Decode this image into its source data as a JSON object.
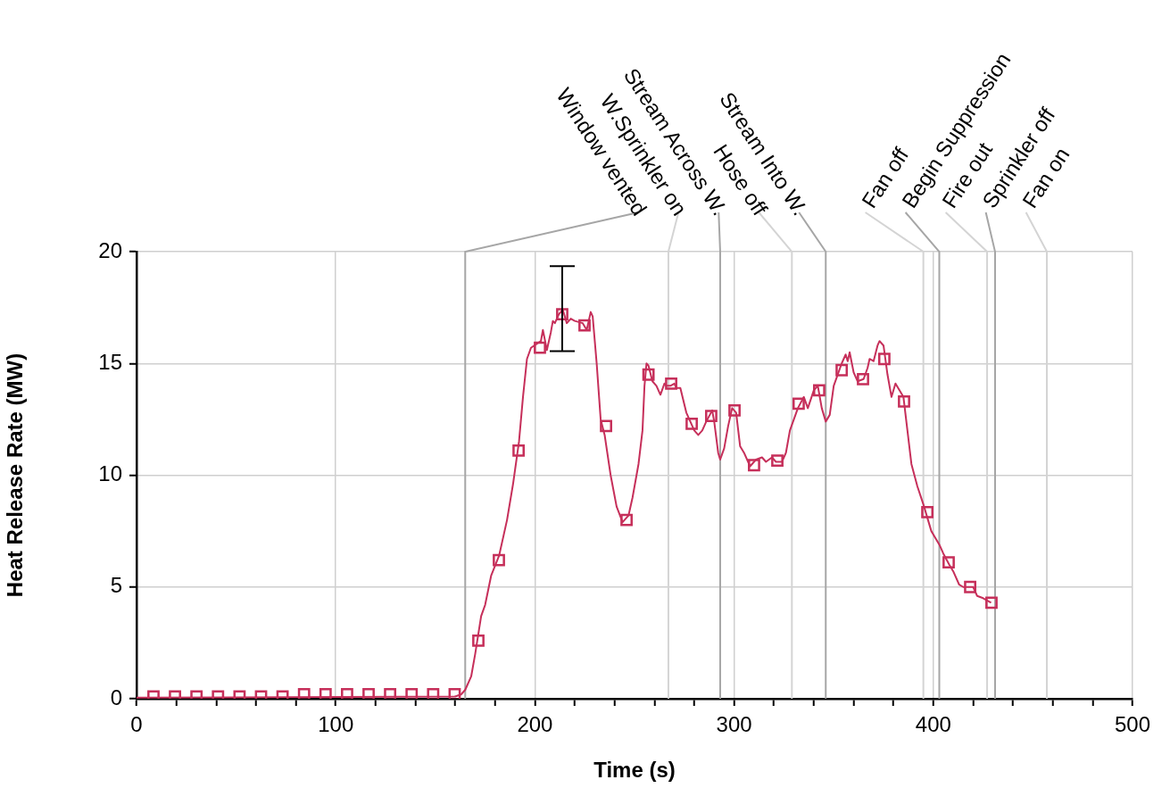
{
  "chart_data": {
    "type": "line",
    "xlabel": "Time (s)",
    "ylabel": "Heat Release Rate (MW)",
    "xlim": [
      0,
      500
    ],
    "ylim": [
      0,
      20
    ],
    "xticks": [
      0,
      {
        "value": 20,
        "label": null
      },
      {
        "value": 40,
        "label": null
      },
      {
        "value": 60,
        "label": null
      },
      {
        "value": 80,
        "label": null
      },
      100,
      {
        "value": 120,
        "label": null
      },
      {
        "value": 140,
        "label": null
      },
      {
        "value": 160,
        "label": null
      },
      {
        "value": 180,
        "label": null
      },
      200,
      {
        "value": 220,
        "label": null
      },
      {
        "value": 240,
        "label": null
      },
      {
        "value": 260,
        "label": null
      },
      {
        "value": 280,
        "label": null
      },
      300,
      {
        "value": 320,
        "label": null
      },
      {
        "value": 340,
        "label": null
      },
      {
        "value": 360,
        "label": null
      },
      {
        "value": 380,
        "label": null
      },
      400,
      {
        "value": 420,
        "label": null
      },
      {
        "value": 440,
        "label": null
      },
      {
        "value": 460,
        "label": null
      },
      {
        "value": 480,
        "label": null
      },
      500
    ],
    "yticks": [
      0,
      5,
      10,
      15,
      20
    ],
    "grid": true,
    "legend": false,
    "series": [
      {
        "color": "#c62f5a",
        "marker": "none",
        "x": [
          0,
          160,
          163,
          165,
          168,
          170,
          173,
          175,
          178,
          182,
          186,
          189,
          192,
          194,
          196,
          198,
          203,
          204,
          206,
          208,
          209,
          210,
          212,
          214,
          216,
          218,
          220,
          224,
          226,
          228,
          229,
          231,
          233,
          235,
          238,
          241,
          244,
          247,
          249,
          252,
          254,
          255,
          256,
          257,
          259,
          261,
          263,
          265,
          266,
          268,
          270,
          271,
          273,
          276,
          278,
          280,
          282,
          284,
          286,
          289,
          290,
          292,
          293,
          295,
          297,
          299,
          301,
          303,
          305,
          308,
          311,
          314,
          316,
          319,
          321,
          324,
          326,
          328,
          332,
          335,
          337,
          340,
          342,
          344,
          346,
          348,
          350,
          354,
          356,
          357,
          358,
          360,
          362,
          365,
          367,
          368,
          370,
          372,
          373,
          375,
          377,
          379,
          381,
          383,
          385,
          387,
          389,
          392,
          395,
          397,
          399,
          401,
          403,
          405,
          408,
          410,
          413,
          415,
          418,
          420,
          422,
          425,
          427,
          429
        ],
        "values": [
          0.05,
          0.1,
          0.2,
          0.4,
          1.0,
          2.0,
          3.7,
          4.2,
          5.5,
          6.4,
          8.0,
          9.6,
          11.5,
          13.5,
          15.2,
          15.7,
          16.0,
          16.5,
          15.6,
          16.4,
          16.9,
          16.8,
          17.2,
          17.4,
          16.8,
          17.0,
          16.9,
          16.8,
          16.5,
          17.3,
          17.1,
          15.0,
          12.5,
          11.8,
          10.0,
          8.6,
          7.9,
          8.2,
          9.0,
          10.5,
          12.0,
          14.0,
          15.0,
          14.9,
          14.2,
          14.0,
          13.6,
          14.1,
          14.0,
          14.0,
          14.1,
          13.9,
          13.9,
          12.8,
          12.4,
          12.0,
          11.8,
          12.0,
          12.4,
          12.9,
          12.4,
          11.0,
          10.7,
          11.2,
          12.2,
          13.0,
          12.8,
          11.3,
          11.0,
          10.4,
          10.7,
          10.8,
          10.6,
          10.8,
          10.6,
          10.6,
          11.0,
          12.0,
          13.0,
          13.5,
          13.0,
          13.8,
          14.0,
          13.0,
          12.4,
          12.7,
          14.0,
          15.0,
          15.4,
          15.1,
          15.5,
          14.6,
          14.2,
          14.3,
          14.8,
          15.2,
          15.1,
          15.8,
          16.0,
          15.8,
          14.5,
          13.5,
          14.1,
          13.8,
          13.5,
          12.0,
          10.5,
          9.5,
          8.7,
          8.1,
          7.5,
          7.2,
          6.9,
          6.5,
          6.0,
          5.7,
          5.1,
          5.0,
          5.0,
          5.0,
          4.6,
          4.5,
          4.4,
          4.3
        ]
      },
      {
        "type": "scatter",
        "color": "#c62f5a",
        "marker": "square",
        "x": [
          8.5,
          19.3,
          30.1,
          40.9,
          51.7,
          62.5,
          73.3,
          84.1,
          94.9,
          105.7,
          116.5,
          127.3,
          138.1,
          148.9,
          159.7,
          171.6,
          181.9,
          191.8,
          202.5,
          213.7,
          224.9,
          235.7,
          246,
          257,
          268.4,
          278.7,
          288.5,
          300.2,
          310,
          321.7,
          332.4,
          342.7,
          354,
          364.7,
          375.4,
          385.3,
          397,
          407.7,
          418.5,
          429.2
        ],
        "values": [
          0.1,
          0.1,
          0.1,
          0.1,
          0.1,
          0.1,
          0.1,
          0.2,
          0.2,
          0.2,
          0.2,
          0.2,
          0.2,
          0.2,
          0.2,
          2.6,
          6.2,
          11.1,
          15.7,
          17.2,
          16.7,
          12.2,
          8.0,
          14.5,
          14.1,
          12.3,
          12.65,
          12.9,
          10.45,
          10.65,
          13.2,
          13.8,
          14.7,
          14.3,
          15.2,
          13.3,
          8.35,
          6.1,
          5.0,
          4.3
        ],
        "errors": [
          null,
          null,
          null,
          null,
          null,
          null,
          null,
          null,
          null,
          null,
          null,
          null,
          null,
          null,
          null,
          null,
          null,
          null,
          null,
          [
            15.55,
            19.35
          ],
          null,
          null,
          null,
          null,
          null,
          null,
          null,
          null,
          null,
          null,
          null,
          null,
          null,
          null,
          null,
          null,
          null,
          null,
          null,
          null
        ]
      }
    ],
    "ref_lines": [
      {
        "axis": "x",
        "value": 165,
        "label": "Window vented",
        "color": "#a6a6a6"
      },
      {
        "axis": "x",
        "value": 267,
        "label": "W.Sprinkler on",
        "color": "#d4d4d4"
      },
      {
        "axis": "x",
        "value": 293,
        "label": "Stream Across W.",
        "color": "#a6a6a6"
      },
      {
        "axis": "x",
        "value": 329,
        "label": "Hose off",
        "color": "#d4d4d4"
      },
      {
        "axis": "x",
        "value": 346,
        "label": "Stream Into W.",
        "color": "#a6a6a6"
      },
      {
        "axis": "x",
        "value": 395,
        "label": "Fan off",
        "color": "#d4d4d4"
      },
      {
        "axis": "x",
        "value": 403,
        "label": "Begin Suppression",
        "color": "#a6a6a6"
      },
      {
        "axis": "x",
        "value": 427,
        "label": "Fire out",
        "color": "#d4d4d4"
      },
      {
        "axis": "x",
        "value": 431,
        "label": "Sprinkler off",
        "color": "#a6a6a6"
      },
      {
        "axis": "x",
        "value": 457,
        "label": "Fan on",
        "color": "#d4d4d4"
      }
    ]
  }
}
